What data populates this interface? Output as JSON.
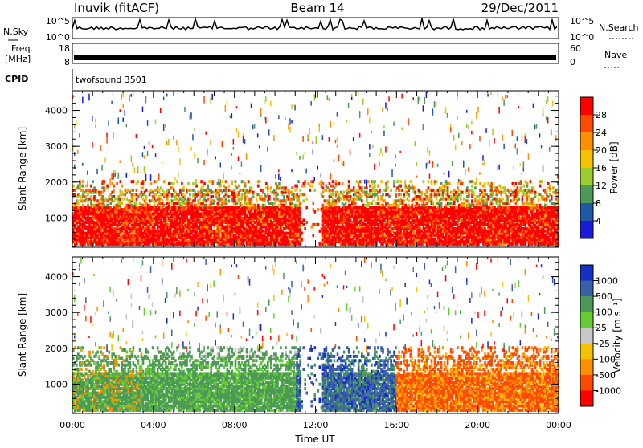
{
  "header": {
    "station": "Inuvik (fitACF)",
    "beam": "Beam 14",
    "date": "29/Dec/2011"
  },
  "info_panels": {
    "nsky_label": "N.Sky",
    "nsky_ticks": [
      "10^5",
      "10^0"
    ],
    "nsearch_label": "N.Search",
    "nsearch_ticks": [
      "10^5",
      "10^0"
    ],
    "freq_label": "Freq.",
    "freq_unit": "[MHz]",
    "freq_ticks": [
      "18",
      "8"
    ],
    "nave_label": "Nave",
    "nave_ticks": [
      "60",
      "0"
    ],
    "cpid_label": "CPID",
    "cpid_value": "twofsound 3501"
  },
  "chart_data": [
    {
      "type": "heatmap",
      "name": "power-panel",
      "ylabel": "Slant Range [km]",
      "yticks": [
        1000,
        2000,
        3000,
        4000
      ],
      "ylim": [
        180,
        4550
      ],
      "xlim": [
        0,
        24
      ],
      "xticks": [
        "00:00",
        "04:00",
        "08:00",
        "12:00",
        "16:00",
        "20:00",
        "00:00"
      ],
      "colorbar": {
        "label": "Power [dB]",
        "ticks": [
          "28",
          "24",
          "20",
          "16",
          "12",
          "8",
          "4"
        ],
        "colors": [
          "#ff0000",
          "#ff4a00",
          "#ff9100",
          "#f4c200",
          "#9ccd2e",
          "#4d9957",
          "#1e5aa5",
          "#1a1adc"
        ]
      }
    },
    {
      "type": "heatmap",
      "name": "velocity-panel",
      "ylabel": "Slant Range [km]",
      "yticks": [
        1000,
        2000,
        3000,
        4000
      ],
      "ylim": [
        180,
        4550
      ],
      "xlim": [
        0,
        24
      ],
      "xticks": [
        "00:00",
        "04:00",
        "08:00",
        "12:00",
        "16:00",
        "20:00",
        "00:00"
      ],
      "xlabel": "Time UT",
      "colorbar": {
        "label": "Velocity [m s⁻¹]",
        "ticks": [
          "1000",
          "500",
          "100",
          "25",
          "-25",
          "-100",
          "-500",
          "-1000"
        ],
        "colors": [
          "#1530c8",
          "#3a60a8",
          "#4d9957",
          "#66cc33",
          "#c8c8c8",
          "#f4c200",
          "#ff9100",
          "#ff4a00",
          "#ff0000"
        ]
      }
    }
  ]
}
